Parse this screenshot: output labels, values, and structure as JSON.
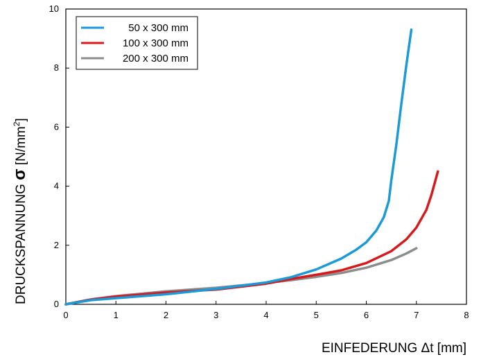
{
  "chart_data": {
    "type": "line",
    "xlabel": "EINFEDERUNG Δt [mm]",
    "ylabel": {
      "prefix": "DRUCKSPANNUNG ",
      "symbol": "σ",
      "unit_start": " [N/mm",
      "superscript": "2",
      "unit_end": "]"
    },
    "xlim": [
      0,
      8
    ],
    "ylim": [
      0,
      10
    ],
    "xticks": [
      "0",
      "1",
      "2",
      "3",
      "4",
      "5",
      "6",
      "7",
      "8"
    ],
    "yticks": [
      "0",
      "2",
      "4",
      "6",
      "8",
      "10"
    ],
    "grid": false,
    "legend_position": "top-left",
    "series": [
      {
        "name": "50 x 300 mm",
        "color": "#1a9ad6",
        "points": [
          [
            0,
            0
          ],
          [
            0.5,
            0.14
          ],
          [
            1,
            0.21
          ],
          [
            2,
            0.34
          ],
          [
            3,
            0.52
          ],
          [
            4,
            0.74
          ],
          [
            4.5,
            0.92
          ],
          [
            5,
            1.18
          ],
          [
            5.5,
            1.55
          ],
          [
            5.8,
            1.85
          ],
          [
            6,
            2.1
          ],
          [
            6.2,
            2.5
          ],
          [
            6.35,
            2.95
          ],
          [
            6.45,
            3.5
          ],
          [
            6.5,
            4.2
          ],
          [
            6.6,
            5.4
          ],
          [
            6.7,
            6.8
          ],
          [
            6.8,
            8.1
          ],
          [
            6.9,
            9.3
          ]
        ]
      },
      {
        "name": "100 x 300 mm",
        "color": "#d7191c",
        "points": [
          [
            0,
            0
          ],
          [
            0.5,
            0.16
          ],
          [
            1,
            0.26
          ],
          [
            2,
            0.4
          ],
          [
            3,
            0.5
          ],
          [
            4,
            0.7
          ],
          [
            4.5,
            0.86
          ],
          [
            5,
            1.0
          ],
          [
            5.5,
            1.15
          ],
          [
            6,
            1.4
          ],
          [
            6.5,
            1.8
          ],
          [
            6.8,
            2.2
          ],
          [
            7,
            2.6
          ],
          [
            7.2,
            3.2
          ],
          [
            7.3,
            3.7
          ],
          [
            7.43,
            4.5
          ]
        ]
      },
      {
        "name": "200 x 300 mm",
        "color": "#8c8c8c",
        "points": [
          [
            0,
            0
          ],
          [
            0.5,
            0.17
          ],
          [
            1,
            0.28
          ],
          [
            2,
            0.44
          ],
          [
            3,
            0.56
          ],
          [
            4,
            0.72
          ],
          [
            4.5,
            0.82
          ],
          [
            5,
            0.93
          ],
          [
            5.5,
            1.06
          ],
          [
            6,
            1.24
          ],
          [
            6.5,
            1.5
          ],
          [
            6.8,
            1.72
          ],
          [
            7,
            1.9
          ]
        ]
      }
    ]
  }
}
